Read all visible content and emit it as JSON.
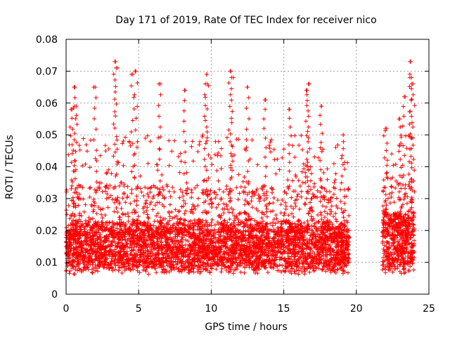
{
  "chart_data": {
    "type": "scatter",
    "title": "Day 171 of 2019, Rate Of TEC Index for receiver nico",
    "xlabel": "GPS time / hours",
    "ylabel": "ROTI / TECUs",
    "xlim": [
      0,
      25
    ],
    "ylim": [
      0,
      0.08
    ],
    "x_ticks": [
      0,
      5,
      10,
      15,
      20,
      25
    ],
    "y_ticks": [
      0,
      0.01,
      0.02,
      0.03,
      0.04,
      0.05,
      0.06,
      0.07,
      0.08
    ],
    "x_tick_labels": [
      "0",
      "5",
      "10",
      "15",
      "20",
      "25"
    ],
    "y_tick_labels": [
      "0",
      "0.01",
      "0.02",
      "0.03",
      "0.04",
      "0.05",
      "0.06",
      "0.07",
      "0.08"
    ],
    "grid": true,
    "marker": "plus",
    "marker_color": "#ff0000",
    "series": [
      {
        "name": "ROTI",
        "segments": [
          {
            "x_start": 0.0,
            "x_end": 19.5,
            "typical_low": 0.008,
            "typical_high": 0.022
          },
          {
            "x_start": 21.8,
            "x_end": 24.0,
            "typical_low": 0.008,
            "typical_high": 0.025
          }
        ],
        "peaks": [
          {
            "x": 0.4,
            "y": 0.058
          },
          {
            "x": 0.55,
            "y": 0.065
          },
          {
            "x": 0.7,
            "y": 0.059
          },
          {
            "x": 2.0,
            "y": 0.065
          },
          {
            "x": 3.4,
            "y": 0.073
          },
          {
            "x": 3.45,
            "y": 0.071
          },
          {
            "x": 4.8,
            "y": 0.07
          },
          {
            "x": 4.6,
            "y": 0.069
          },
          {
            "x": 6.4,
            "y": 0.066
          },
          {
            "x": 8.2,
            "y": 0.064
          },
          {
            "x": 9.7,
            "y": 0.069
          },
          {
            "x": 9.6,
            "y": 0.066
          },
          {
            "x": 11.3,
            "y": 0.07
          },
          {
            "x": 11.4,
            "y": 0.068
          },
          {
            "x": 12.5,
            "y": 0.065
          },
          {
            "x": 13.7,
            "y": 0.061
          },
          {
            "x": 15.4,
            "y": 0.058
          },
          {
            "x": 16.7,
            "y": 0.066
          },
          {
            "x": 16.6,
            "y": 0.064
          },
          {
            "x": 17.6,
            "y": 0.059
          },
          {
            "x": 19.1,
            "y": 0.05
          },
          {
            "x": 22.0,
            "y": 0.052
          },
          {
            "x": 23.0,
            "y": 0.055
          },
          {
            "x": 23.3,
            "y": 0.062
          },
          {
            "x": 23.7,
            "y": 0.073
          },
          {
            "x": 23.8,
            "y": 0.068
          },
          {
            "x": 23.9,
            "y": 0.066
          }
        ],
        "min_y": 0.003
      }
    ]
  }
}
